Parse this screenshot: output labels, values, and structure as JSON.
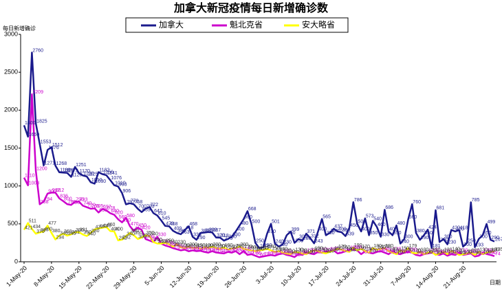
{
  "chart_data": {
    "type": "line",
    "title": "加拿大新冠疫情每日新增确诊数",
    "y_label": "每日新增确诊",
    "x_label": "日期",
    "categories": [
      "1-May-20",
      null,
      null,
      null,
      null,
      null,
      null,
      "8-May-20",
      null,
      null,
      null,
      null,
      null,
      null,
      "15-May-20",
      null,
      null,
      null,
      null,
      null,
      null,
      "22-May-20",
      null,
      null,
      null,
      null,
      null,
      null,
      "29-May-20",
      null,
      null,
      null,
      null,
      null,
      null,
      "5-Jun-20",
      null,
      null,
      null,
      null,
      null,
      null,
      "12-Jun-20",
      null,
      null,
      null,
      null,
      null,
      null,
      "19-Jun-20",
      null,
      null,
      null,
      null,
      null,
      null,
      "26-Jun-20",
      null,
      null,
      null,
      null,
      null,
      null,
      "3-Jul-20",
      null,
      null,
      null,
      null,
      null,
      null,
      "10-Jul-20",
      null,
      null,
      null,
      null,
      null,
      null,
      "17-Jul-20",
      null,
      null,
      null,
      null,
      null,
      null,
      "24-Jul-20",
      null,
      null,
      null,
      null,
      null,
      null,
      "31-Jul-20",
      null,
      null,
      null,
      null,
      null,
      null,
      "7-Aug-20",
      null,
      null,
      null,
      null,
      null,
      null,
      "14-Aug-20",
      null,
      null,
      null,
      null,
      null,
      null,
      "21-Aug-20",
      null,
      null,
      null,
      null,
      null,
      null,
      null,
      null
    ],
    "series": [
      {
        "name": "加拿大",
        "color": "#1a1a8c",
        "label_color": "#1a1a8c",
        "values": [
          1800,
          1650,
          2760,
          1825,
          1553,
          1271,
          1476,
          1512,
          1268,
          1180,
          1176,
          1173,
          1120,
          1251,
          1170,
          1138,
          1125,
          1050,
          1030,
          1182,
          1156,
          1141,
          1076,
          1010,
          993,
          906,
          757,
          772,
          758,
          700,
          655,
          700,
          722,
          642,
          610,
          545,
          473,
          468,
          409,
          380,
          363,
          418,
          468,
          330,
          290,
          380,
          385,
          392,
          387,
          320,
          318,
          279,
          300,
          330,
          400,
          480,
          560,
          668,
          500,
          250,
          180,
          190,
          370,
          501,
          240,
          200,
          230,
          350,
          399,
          250,
          300,
          280,
          371,
          312,
          243,
          400,
          565,
          350,
          380,
          437,
          400,
          390,
          339,
          450,
          786,
          500,
          400,
          573,
          350,
          540,
          460,
          330,
          686,
          400,
          350,
          480,
          240,
          300,
          560,
          760,
          380,
          290,
          350,
          424,
          181,
          681,
          260,
          300,
          230,
          420,
          400,
          418,
          200,
          250,
          785,
          193,
          300,
          350,
          499,
          290,
          267
        ]
      },
      {
        "name": "魁北克省",
        "color": "#cc00cc",
        "label_color": "#cc00cc",
        "values": [
          1110,
          1008,
          2209,
          1200,
          758,
          794,
          900,
          912,
          912,
          836,
          800,
          760,
          750,
          790,
          793,
          740,
          720,
          700,
          705,
          650,
          697,
          678,
          640,
          620,
          560,
          520,
          580,
          470,
          410,
          450,
          420,
          300,
          280,
          260,
          330,
          239,
          215,
          200,
          180,
          165,
          150,
          160,
          138,
          150,
          140,
          145,
          130,
          120,
          140,
          122,
          115,
          110,
          130,
          120,
          140,
          100,
          142,
          90,
          100,
          80,
          60,
          70,
          80,
          89,
          80,
          100,
          110,
          90,
          80,
          62,
          100,
          90,
          120,
          110,
          100,
          130,
          120,
          130,
          140,
          150,
          110,
          120,
          140,
          155,
          160,
          150,
          100,
          140,
          120,
          110,
          130,
          140,
          120,
          100,
          140,
          110,
          100,
          120,
          130,
          120,
          90,
          80,
          100,
          110,
          120,
          100,
          90,
          110,
          80,
          100,
          90,
          120,
          90,
          100,
          110,
          70,
          80,
          120,
          102,
          90,
          74
        ]
      },
      {
        "name": "安大略省",
        "color": "#ffff00",
        "label_color": "#333333",
        "values": [
          421,
          511,
          434,
          370,
          387,
          400,
          477,
          380,
          294,
          346,
          369,
          345,
          361,
          390,
          391,
          360,
          340,
          380,
          427,
          440,
          448,
          460,
          404,
          400,
          282,
          292,
          340,
          380,
          350,
          300,
          320,
          350,
          340,
          260,
          240,
          240,
          250,
          230,
          200,
          230,
          190,
          180,
          200,
          180,
          190,
          170,
          190,
          180,
          200,
          180,
          170,
          190,
          160,
          175,
          180,
          200,
          170,
          160,
          150,
          140,
          150,
          157,
          170,
          150,
          130,
          140,
          120,
          110,
          100,
          130,
          120,
          110,
          100,
          130,
          150,
          140,
          120,
          110,
          130,
          150,
          170,
          160,
          140,
          130,
          190,
          150,
          170,
          140,
          120,
          180,
          160,
          170,
          180,
          140,
          120,
          100,
          150,
          130,
          179,
          120,
          110,
          130,
          100,
          120,
          130,
          90,
          110,
          130,
          100,
          140,
          120,
          90,
          100,
          110,
          120,
          90,
          130,
          100,
          120,
          130,
          135
        ]
      }
    ],
    "ylim": [
      0,
      3000
    ],
    "yticks": [
      0,
      500,
      1000,
      1500,
      2000,
      2500,
      3000
    ],
    "grid": false
  }
}
